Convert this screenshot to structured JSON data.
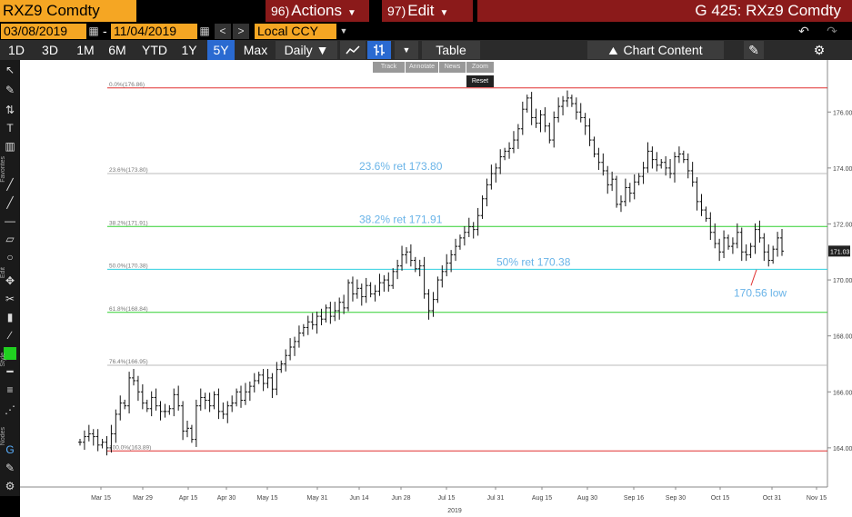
{
  "header": {
    "ticker": "RXZ9 Comdty",
    "actions_num": "96)",
    "actions_label": "Actions",
    "edit_num": "97)",
    "edit_label": "Edit",
    "page_title": "G 425: RXz9 Comdty"
  },
  "toolbar2": {
    "start_date": "03/08/2019",
    "separator": "-",
    "end_date": "11/04/2019",
    "currency": "Local CCY",
    "prev": "<",
    "next": ">",
    "undo": "↶",
    "redo": "↷"
  },
  "toolbar3": {
    "ranges": [
      {
        "label": "1D",
        "active": false
      },
      {
        "label": "3D",
        "active": false
      },
      {
        "label": "1M",
        "active": false
      },
      {
        "label": "6M",
        "active": false
      },
      {
        "label": "YTD",
        "active": false
      },
      {
        "label": "1Y",
        "active": false
      },
      {
        "label": "5Y",
        "active": true
      },
      {
        "label": "Max",
        "active": false
      }
    ],
    "frequency": "Daily ▼",
    "table_label": "Table",
    "chart_content_label": "Chart Content"
  },
  "sidebar_labels": [
    "Favorites",
    "Edit",
    "Style",
    "Nodes"
  ],
  "mini_toolbar": [
    "Track",
    "Annotate",
    "News",
    "Zoom"
  ],
  "reset_label": "Reset",
  "colors": {
    "orange": "#f5a623",
    "red_header": "#8b1a1a",
    "active_blue": "#2a6ad1",
    "fib_red": "#e03030",
    "fib_grey": "#bbbbbb",
    "fib_green": "#30d030",
    "fib_cyan": "#30d0e0",
    "annotation_blue": "#6ab4e8"
  },
  "chart_data": {
    "type": "ohlc",
    "x_tick_labels": [
      "Mar 15",
      "Mar 29",
      "Apr 15",
      "Apr 30",
      "May 15",
      "May 31",
      "Jun 14",
      "Jun 28",
      "Jul 15",
      "Jul 31",
      "Aug 15",
      "Aug 30",
      "Sep 16",
      "Sep 30",
      "Oct 15",
      "Oct 31",
      "Nov 15"
    ],
    "year_label": "2019",
    "y_ticks": [
      "164.00",
      "166.00",
      "168.00",
      "170.00",
      "172.00",
      "174.00",
      "176.00"
    ],
    "ylim": [
      162.6,
      177.6
    ],
    "last_price": "171.03",
    "fib_levels": [
      {
        "label": "0.0%(176.86)",
        "value": 176.86,
        "color": "#e03030"
      },
      {
        "label": "23.6%(173.80)",
        "value": 173.8,
        "color": "#bbbbbb"
      },
      {
        "label": "38.2%(171.91)",
        "value": 171.91,
        "color": "#30d030"
      },
      {
        "label": "50.0%(170.38)",
        "value": 170.38,
        "color": "#30d0e0"
      },
      {
        "label": "61.8%(168.84)",
        "value": 168.84,
        "color": "#30d030"
      },
      {
        "label": "76.4%(166.95)",
        "value": 166.95,
        "color": "#bbbbbb"
      },
      {
        "label": "100.0%(163.89)",
        "value": 163.89,
        "color": "#e03030"
      }
    ],
    "annotations": [
      {
        "text": "23.6% ret 173.80",
        "value": 173.8
      },
      {
        "text": "38.2% ret 171.91",
        "value": 171.91
      },
      {
        "text": "50% ret 170.38",
        "value": 170.38
      },
      {
        "text": "170.56 low",
        "value": 169.4
      }
    ],
    "closes": [
      164.2,
      164.4,
      164.5,
      164.4,
      164.1,
      164.2,
      164.0,
      164.5,
      165.2,
      165.6,
      165.5,
      166.5,
      166.4,
      166.0,
      165.6,
      165.4,
      165.8,
      165.5,
      165.3,
      165.3,
      165.4,
      165.9,
      165.5,
      164.6,
      164.7,
      164.3,
      165.5,
      165.8,
      165.7,
      165.5,
      165.9,
      165.3,
      165.2,
      165.5,
      165.6,
      166.0,
      165.7,
      166.0,
      166.2,
      166.4,
      166.6,
      166.3,
      166.5,
      166.1,
      166.8,
      167.0,
      167.3,
      167.6,
      167.8,
      168.1,
      168.3,
      168.5,
      168.4,
      168.7,
      168.6,
      169.0,
      168.7,
      168.9,
      169.2,
      169.0,
      169.9,
      169.5,
      169.7,
      169.4,
      169.8,
      169.5,
      169.6,
      169.9,
      170.0,
      169.8,
      170.3,
      170.5,
      170.9,
      171.0,
      170.7,
      170.4,
      170.5,
      169.5,
      168.9,
      169.3,
      170.0,
      170.3,
      170.6,
      170.9,
      171.2,
      171.5,
      171.7,
      171.9,
      171.8,
      172.3,
      172.9,
      173.4,
      173.8,
      174.0,
      174.4,
      174.6,
      174.7,
      175.0,
      175.4,
      176.1,
      176.5,
      175.8,
      175.6,
      175.9,
      175.5,
      175.0,
      175.8,
      176.2,
      176.4,
      176.5,
      176.3,
      176.0,
      175.8,
      175.5,
      175.0,
      174.5,
      174.2,
      173.9,
      173.4,
      173.6,
      172.7,
      172.8,
      173.3,
      173.1,
      173.5,
      173.7,
      174.0,
      174.6,
      174.3,
      174.1,
      174.2,
      174.0,
      173.8,
      174.4,
      174.5,
      174.3,
      173.9,
      173.5,
      172.8,
      172.5,
      172.2,
      171.7,
      171.3,
      171.0,
      171.5,
      171.2,
      171.3,
      171.7,
      171.0,
      170.9,
      171.2,
      171.8,
      171.5,
      171.0,
      170.7,
      171.1,
      171.5,
      171.03
    ]
  }
}
